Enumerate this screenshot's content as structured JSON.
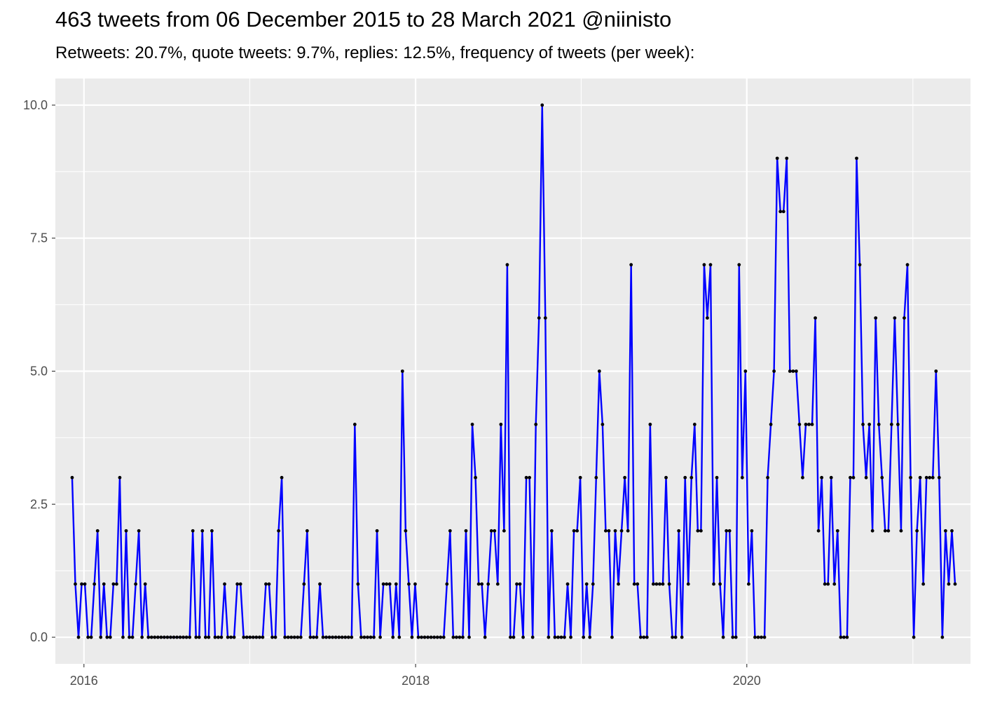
{
  "chart_data": {
    "type": "line",
    "title": "463 tweets from 06 December 2015 to 28 March 2021 @niinisto",
    "subtitle": "Retweets: 20.7%, quote tweets: 9.7%, replies: 12.5%, frequency of tweets (per week):",
    "xlabel": "",
    "ylabel": "",
    "x_ticks": [
      "2016",
      "2018",
      "2020"
    ],
    "y_ticks": [
      "0.0",
      "2.5",
      "5.0",
      "7.5",
      "10.0"
    ],
    "xlim": [
      "2015-10-30",
      "2021-05-08"
    ],
    "ylim": [
      -0.5,
      10.5
    ],
    "grid": true,
    "line_color": "#0000ff",
    "point_color": "#000000",
    "panel_color": "#ebebeb",
    "x_start": "2015-12-06",
    "x_step_days": 7,
    "values": [
      3,
      1,
      0,
      1,
      1,
      0,
      0,
      1,
      2,
      0,
      1,
      0,
      0,
      1,
      1,
      3,
      0,
      2,
      0,
      0,
      1,
      2,
      0,
      1,
      0,
      0,
      0,
      0,
      0,
      0,
      0,
      0,
      0,
      0,
      0,
      0,
      0,
      0,
      2,
      0,
      0,
      2,
      0,
      0,
      2,
      0,
      0,
      0,
      1,
      0,
      0,
      0,
      1,
      1,
      0,
      0,
      0,
      0,
      0,
      0,
      0,
      1,
      1,
      0,
      0,
      2,
      3,
      0,
      0,
      0,
      0,
      0,
      0,
      1,
      2,
      0,
      0,
      0,
      1,
      0,
      0,
      0,
      0,
      0,
      0,
      0,
      0,
      0,
      0,
      4,
      1,
      0,
      0,
      0,
      0,
      0,
      2,
      0,
      1,
      1,
      1,
      0,
      1,
      0,
      5,
      2,
      1,
      0,
      1,
      0,
      0,
      0,
      0,
      0,
      0,
      0,
      0,
      0,
      1,
      2,
      0,
      0,
      0,
      0,
      2,
      0,
      4,
      3,
      1,
      1,
      0,
      1,
      2,
      2,
      1,
      4,
      2,
      7,
      0,
      0,
      1,
      1,
      0,
      3,
      3,
      0,
      4,
      6,
      10,
      6,
      0,
      2,
      0,
      0,
      0,
      0,
      1,
      0,
      2,
      2,
      3,
      0,
      1,
      0,
      1,
      3,
      5,
      4,
      2,
      2,
      0,
      2,
      1,
      2,
      3,
      2,
      7,
      1,
      1,
      0,
      0,
      0,
      4,
      1,
      1,
      1,
      1,
      3,
      1,
      0,
      0,
      2,
      0,
      3,
      1,
      3,
      4,
      2,
      2,
      7,
      6,
      7,
      1,
      3,
      1,
      0,
      2,
      2,
      0,
      0,
      7,
      3,
      5,
      1,
      2,
      0,
      0,
      0,
      0,
      3,
      4,
      5,
      9,
      8,
      8,
      9,
      5,
      5,
      5,
      4,
      3,
      4,
      4,
      4,
      6,
      2,
      3,
      1,
      1,
      3,
      1,
      2,
      0,
      0,
      0,
      3,
      3,
      9,
      7,
      4,
      3,
      4,
      2,
      6,
      4,
      3,
      2,
      2,
      4,
      6,
      4,
      2,
      6,
      7,
      3,
      0,
      2,
      3,
      1,
      3,
      3,
      3,
      5,
      3,
      0,
      2,
      1,
      2,
      1
    ]
  }
}
